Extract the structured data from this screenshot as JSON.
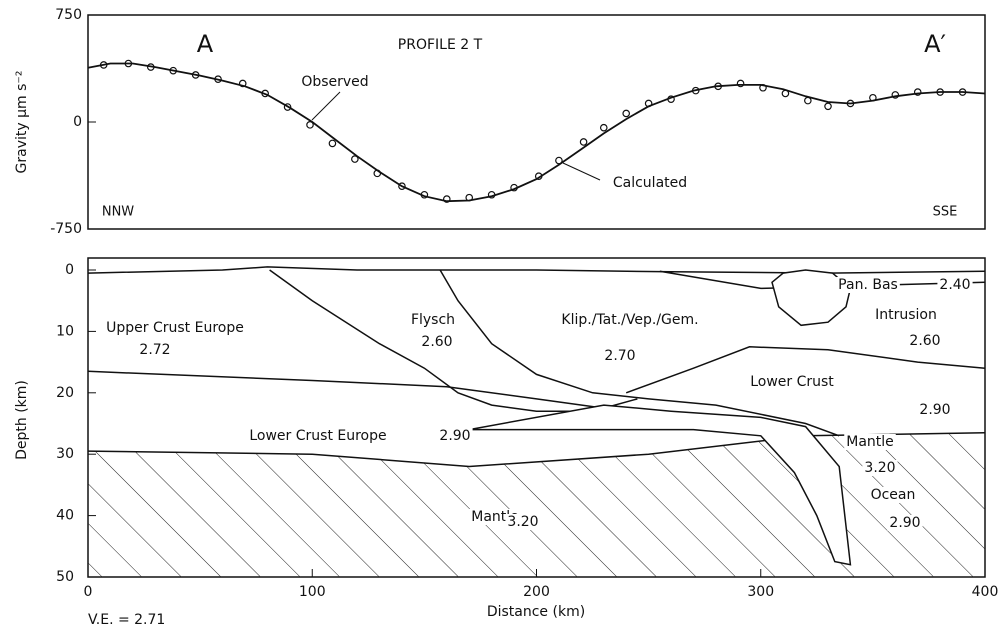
{
  "chart_data": [
    {
      "type": "line",
      "ylabel": "Gravity   μm s⁻²",
      "annotations": [
        "A",
        "PROFILE 2 T",
        "A′",
        "NNW",
        "SSE"
      ],
      "xlim": [
        0,
        400
      ],
      "ylim": [
        -750,
        750
      ],
      "yticks": [
        -750,
        0,
        750
      ],
      "series": [
        {
          "name": "Observed",
          "color": "#111111",
          "marker": "circle",
          "x": [
            7,
            18,
            28,
            38,
            48,
            58,
            69,
            79,
            89,
            99,
            109,
            119,
            129,
            140,
            150,
            160,
            170,
            180,
            190,
            201,
            210,
            221,
            230,
            240,
            250,
            260,
            271,
            281,
            291,
            301,
            311,
            321,
            330,
            340,
            350,
            360,
            370,
            380,
            390
          ],
          "values": [
            400,
            410,
            385,
            360,
            330,
            300,
            270,
            200,
            105,
            -20,
            -150,
            -260,
            -360,
            -450,
            -510,
            -540,
            -530,
            -510,
            -460,
            -380,
            -270,
            -140,
            -40,
            60,
            130,
            160,
            220,
            250,
            270,
            240,
            200,
            150,
            110,
            130,
            170,
            190,
            210,
            210,
            210
          ]
        },
        {
          "name": "Calculated",
          "color": "#111111",
          "marker": "none",
          "x": [
            0,
            10,
            20,
            30,
            40,
            50,
            60,
            70,
            80,
            90,
            100,
            110,
            120,
            130,
            140,
            150,
            160,
            170,
            180,
            190,
            200,
            210,
            220,
            230,
            240,
            250,
            260,
            270,
            280,
            290,
            300,
            310,
            320,
            330,
            340,
            350,
            360,
            370,
            380,
            390,
            400
          ],
          "values": [
            380,
            410,
            410,
            385,
            355,
            325,
            290,
            250,
            190,
            100,
            0,
            -120,
            -240,
            -350,
            -450,
            -520,
            -555,
            -550,
            -520,
            -470,
            -400,
            -300,
            -190,
            -80,
            20,
            110,
            170,
            220,
            250,
            260,
            260,
            230,
            180,
            140,
            130,
            150,
            180,
            200,
            210,
            210,
            200
          ]
        }
      ]
    },
    {
      "type": "section",
      "xlabel": "Distance  (km)",
      "ylabel": "Depth  (km)",
      "note": "V.E. = 2.71",
      "xlim": [
        0,
        400
      ],
      "xticks": [
        0,
        100,
        200,
        300,
        400
      ],
      "ylim": [
        0,
        50
      ],
      "yticks": [
        0,
        10,
        20,
        30,
        40,
        50
      ],
      "y_inverted": true,
      "annotations": [
        "Upper Crust  Europe",
        "2.72",
        "Flysch",
        "2.60",
        "Klip./Tat./Vep./Gem.",
        "2.70",
        "Pan. Bas",
        "2.40",
        "Intrusion",
        "2.60",
        "Lower Crust",
        "2.90",
        "Lower Crust Europe",
        "2.90",
        "Mantle",
        "3.20",
        "Mantle",
        "3.20",
        "Ocean",
        "2.90"
      ],
      "boundaries": [
        {
          "x": [
            0,
            60,
            80,
            120,
            200,
            260,
            330,
            400
          ],
          "y": [
            0.5,
            0,
            -0.5,
            0,
            0,
            0.3,
            0.5,
            0.2
          ]
        },
        {
          "x": [
            255,
            300,
            400
          ],
          "y": [
            0.2,
            3,
            2
          ]
        },
        {
          "x": [
            81,
            100,
            130,
            150,
            165,
            180,
            200,
            225,
            245
          ],
          "y": [
            0,
            5,
            12,
            16,
            20,
            22,
            23,
            23,
            21
          ]
        },
        {
          "x": [
            157,
            165,
            180,
            200,
            225,
            250,
            280,
            320,
            335
          ],
          "y": [
            0,
            5,
            12,
            17,
            20,
            21,
            22,
            25,
            27
          ]
        },
        {
          "x": [
            240,
            270,
            295,
            330,
            370,
            400
          ],
          "y": [
            20,
            16,
            12.5,
            13,
            15,
            16
          ]
        },
        {
          "x": [
            0,
            100,
            160,
            200,
            240
          ],
          "y": [
            16.5,
            18,
            19,
            21,
            23
          ]
        },
        {
          "x": [
            0,
            100,
            170,
            250,
            320,
            400
          ],
          "y": [
            29.5,
            30,
            32,
            30,
            27,
            26.5
          ]
        },
        {
          "x": [
            230,
            260,
            300,
            320,
            335,
            340,
            333,
            325,
            315,
            300,
            270,
            220,
            170
          ],
          "y": [
            22,
            23,
            24,
            25.5,
            32,
            48,
            47.5,
            40,
            33,
            27,
            26,
            26,
            26
          ]
        },
        {
          "x": [
            305,
            310,
            320,
            332,
            340,
            338,
            330,
            318,
            308,
            305
          ],
          "y": [
            2,
            0.5,
            0,
            0.5,
            3,
            6,
            8.5,
            9,
            6,
            2
          ]
        }
      ]
    }
  ]
}
